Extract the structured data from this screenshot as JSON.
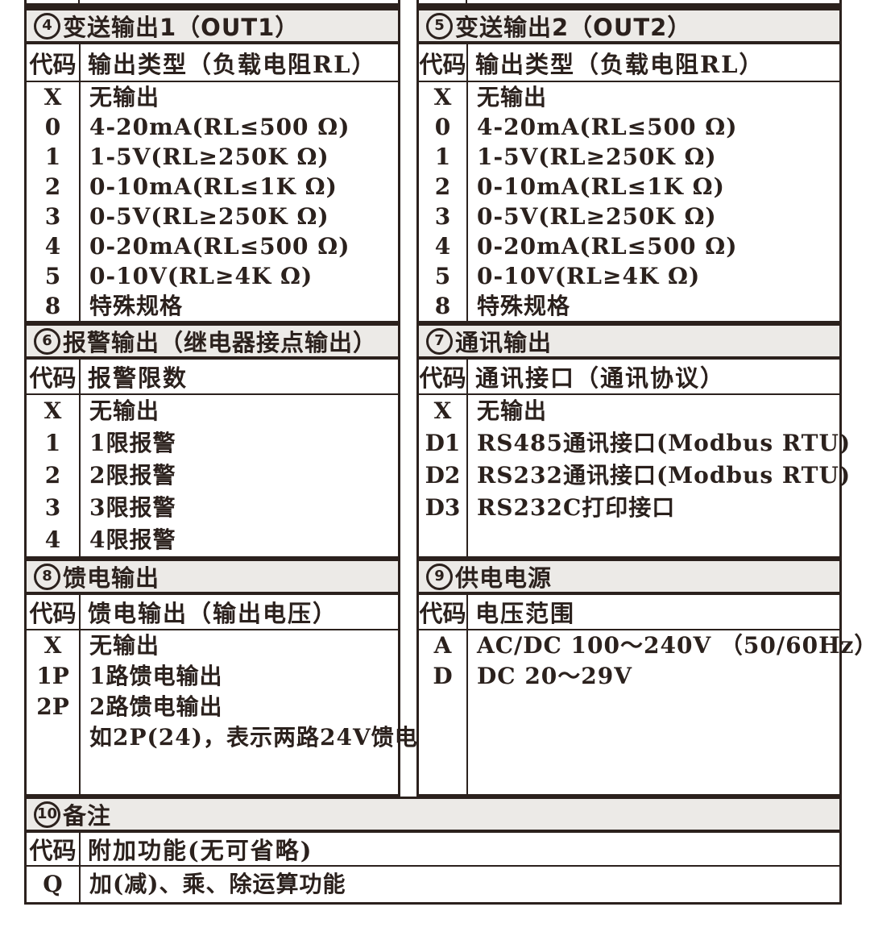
{
  "colors": {
    "ink": "#2b211d",
    "header_bg": "#eceae7",
    "page_bg": "#ffffff"
  },
  "bands": [
    {
      "left": {
        "num": "4",
        "title": "变送输出1（OUT1）",
        "code_header": "代码",
        "desc_header": "输出类型（负载电阻RL）",
        "rows": [
          [
            "X",
            "无输出"
          ],
          [
            "0",
            "4-20mA(RL≤500 Ω)"
          ],
          [
            "1",
            "1-5V(RL≥250K Ω)"
          ],
          [
            "2",
            "0-10mA(RL≤1K Ω)"
          ],
          [
            "3",
            "0-5V(RL≥250K Ω)"
          ],
          [
            "4",
            "0-20mA(RL≤500 Ω)"
          ],
          [
            "5",
            "0-10V(RL≥4K Ω)"
          ],
          [
            "8",
            "特殊规格"
          ]
        ]
      },
      "right": {
        "num": "5",
        "title": "变送输出2（OUT2）",
        "code_header": "代码",
        "desc_header": "输出类型（负载电阻RL）",
        "rows": [
          [
            "X",
            "无输出"
          ],
          [
            "0",
            "4-20mA(RL≤500 Ω)"
          ],
          [
            "1",
            "1-5V(RL≥250K Ω)"
          ],
          [
            "2",
            "0-10mA(RL≤1K Ω)"
          ],
          [
            "3",
            "0-5V(RL≥250K Ω)"
          ],
          [
            "4",
            "0-20mA(RL≤500 Ω)"
          ],
          [
            "5",
            "0-10V(RL≥4K Ω)"
          ],
          [
            "8",
            "特殊规格"
          ]
        ]
      }
    },
    {
      "left": {
        "num": "6",
        "title": "报警输出（继电器接点输出）",
        "code_header": "代码",
        "desc_header": "报警限数",
        "rows": [
          [
            "X",
            "无输出"
          ],
          [
            "1",
            "1限报警"
          ],
          [
            "2",
            "2限报警"
          ],
          [
            "3",
            "3限报警"
          ],
          [
            "4",
            "4限报警"
          ]
        ]
      },
      "right": {
        "num": "7",
        "title": "通讯输出",
        "code_header": "代码",
        "desc_header": "通讯接口（通讯协议）",
        "rows": [
          [
            "X",
            "无输出"
          ],
          [
            "D1",
            "RS485通讯接口(Modbus RTU)"
          ],
          [
            "D2",
            "RS232通讯接口(Modbus RTU)"
          ],
          [
            "D3",
            "RS232C打印接口"
          ]
        ]
      }
    },
    {
      "left": {
        "num": "8",
        "title": "馈电输出",
        "code_header": "代码",
        "desc_header": "馈电输出（输出电压）",
        "rows": [
          [
            "X",
            "无输出"
          ],
          [
            "1P",
            "1路馈电输出"
          ],
          [
            "2P",
            "2路馈电输出"
          ],
          [
            "",
            "如2P(24)，表示两路24V馈电"
          ]
        ]
      },
      "right": {
        "num": "9",
        "title": "供电电源",
        "code_header": "代码",
        "desc_header": "电压范围",
        "rows": [
          [
            "A",
            "AC/DC 100～240V （50/60Hz）"
          ],
          [
            "D",
            "DC 20～29V"
          ]
        ]
      }
    }
  ],
  "footer": {
    "num": "10",
    "title": "备注",
    "code_header": "代码",
    "desc_header": "附加功能(无可省略)",
    "rows": [
      [
        "Q",
        "加(减)、乘、除运算功能"
      ]
    ]
  }
}
